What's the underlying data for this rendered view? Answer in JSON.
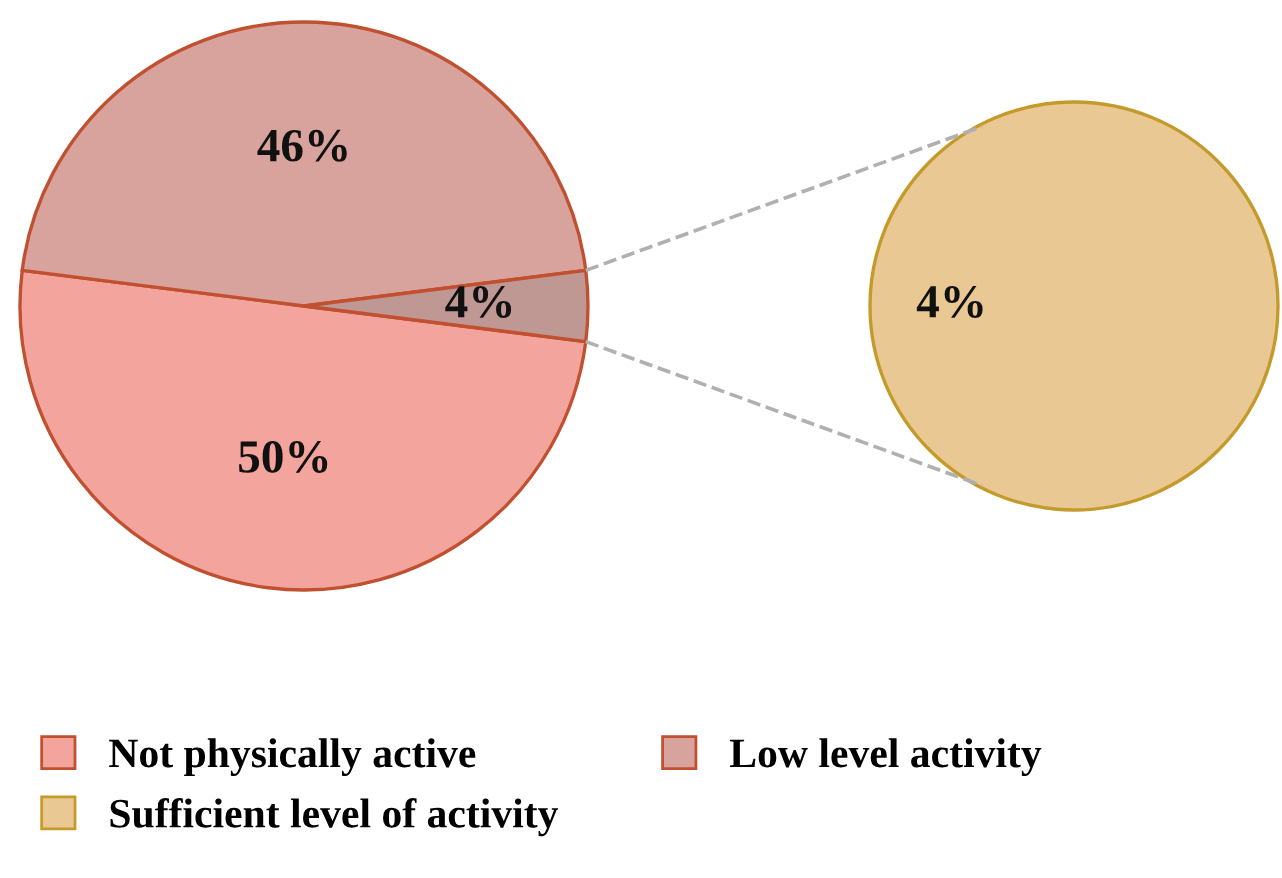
{
  "chart_data": [
    {
      "type": "pie",
      "categories": [
        "Not physically active",
        "Low level activity",
        null
      ],
      "values": [
        50,
        46,
        4
      ],
      "colors": [
        "#f3a49c",
        "#d8a39d",
        "#bf9894"
      ],
      "value_labels": [
        "50%",
        "46%",
        "4%"
      ],
      "legend": "bottom"
    },
    {
      "type": "pie",
      "categories": [
        "Sufficient level of activity"
      ],
      "values": [
        4
      ],
      "colors": [
        "#e9c894"
      ],
      "value_labels": [
        "4%"
      ]
    }
  ]
}
